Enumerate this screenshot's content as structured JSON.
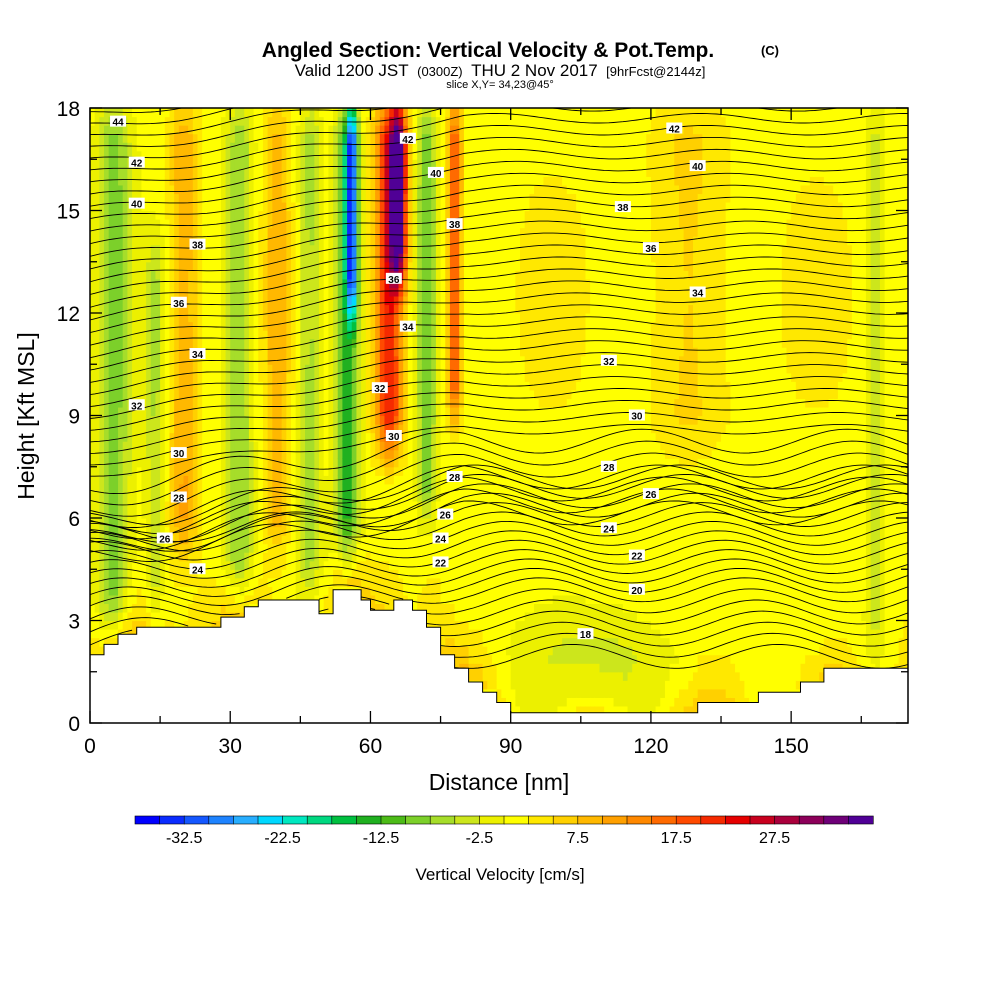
{
  "chart_data": {
    "type": "heatmap",
    "title": "Angled Section: Vertical Velocity & Pot.Temp.",
    "title_suffix": "(C)",
    "subtitle_a": "Valid 1200 JST",
    "subtitle_b": "(0300Z)",
    "subtitle_c": "THU 2 Nov 2017",
    "subtitle_d": "[9hrFcst@2144z]",
    "subtitle_line2": "slice X,Y= 34,23@45°",
    "xlabel": "Distance [nm]",
    "ylabel": "Height [Kft MSL]",
    "xlim": [
      0,
      175
    ],
    "ylim": [
      0,
      18
    ],
    "x_ticks": [
      0,
      30,
      60,
      90,
      120,
      150
    ],
    "y_ticks": [
      0,
      3,
      6,
      9,
      12,
      15,
      18
    ],
    "colorbar": {
      "label": "Vertical Velocity [cm/s]",
      "tick_labels": [
        "-32.5",
        "-22.5",
        "-12.5",
        "-2.5",
        "7.5",
        "17.5",
        "27.5"
      ],
      "tick_values": [
        -32.5,
        -22.5,
        -12.5,
        -2.5,
        7.5,
        17.5,
        27.5
      ],
      "range": [
        -37.5,
        37.5
      ],
      "step": 2.5,
      "colors": [
        "#0000ff",
        "#0a2cff",
        "#1457ff",
        "#1e83ff",
        "#28aeff",
        "#00d8ff",
        "#00e8c0",
        "#00d880",
        "#00c040",
        "#20b020",
        "#4cbb17",
        "#7cd02a",
        "#a6dd2a",
        "#cce61c",
        "#ecf000",
        "#ffff00",
        "#ffe800",
        "#ffd000",
        "#ffb800",
        "#ffa000",
        "#ff8800",
        "#ff6a00",
        "#ff4a00",
        "#f52a00",
        "#e60000",
        "#c8001e",
        "#aa003c",
        "#8c005a",
        "#6e0078",
        "#500096"
      ]
    },
    "theta_contours": [
      {
        "label": "18",
        "label_pos": [
          106,
          2.6
        ]
      },
      {
        "label": "20",
        "label_pos": [
          117,
          3.9
        ]
      },
      {
        "label": "22",
        "label_pos": [
          75,
          4.7
        ],
        "label_pos2": [
          117,
          4.9
        ]
      },
      {
        "label": "24",
        "label_pos": [
          23,
          4.5
        ],
        "label_pos2": [
          75,
          5.4
        ],
        "label_pos3": [
          111,
          5.7
        ]
      },
      {
        "label": "26",
        "label_pos": [
          16,
          5.4
        ],
        "label_pos2": [
          76,
          6.1
        ],
        "label_pos3": [
          120,
          6.7
        ]
      },
      {
        "label": "28",
        "label_pos": [
          19,
          6.6
        ],
        "label_pos2": [
          78,
          7.2
        ],
        "label_pos3": [
          111,
          7.5
        ]
      },
      {
        "label": "30",
        "label_pos": [
          19,
          7.9
        ],
        "label_pos2": [
          65,
          8.4
        ],
        "label_pos3": [
          117,
          9.0
        ]
      },
      {
        "label": "32",
        "label_pos": [
          10,
          9.3
        ],
        "label_pos2": [
          62,
          9.8
        ],
        "label_pos3": [
          111,
          10.6
        ]
      },
      {
        "label": "34",
        "label_pos": [
          23,
          10.8
        ],
        "label_pos2": [
          68,
          11.6
        ],
        "label_pos3": [
          130,
          12.6
        ]
      },
      {
        "label": "36",
        "label_pos": [
          19,
          12.3
        ],
        "label_pos2": [
          65,
          13.0
        ],
        "label_pos3": [
          120,
          13.9
        ]
      },
      {
        "label": "38",
        "label_pos": [
          23,
          14.0
        ],
        "label_pos2": [
          78,
          14.6
        ],
        "label_pos3": [
          114,
          15.1
        ]
      },
      {
        "label": "40",
        "label_pos": [
          10,
          15.2
        ],
        "label_pos2": [
          74,
          16.1
        ],
        "label_pos3": [
          130,
          16.3
        ]
      },
      {
        "label": "42",
        "label_pos": [
          10,
          16.4
        ],
        "label_pos2": [
          68,
          17.1
        ],
        "label_pos3": [
          125,
          17.4
        ]
      },
      {
        "label": "44",
        "label_pos": [
          6,
          17.6
        ]
      }
    ],
    "terrain": [
      [
        0,
        2.0
      ],
      [
        3,
        2.0
      ],
      [
        3,
        2.3
      ],
      [
        6,
        2.3
      ],
      [
        6,
        2.6
      ],
      [
        10,
        2.6
      ],
      [
        10,
        2.8
      ],
      [
        28,
        2.8
      ],
      [
        28,
        3.1
      ],
      [
        33,
        3.1
      ],
      [
        33,
        3.4
      ],
      [
        36,
        3.4
      ],
      [
        36,
        3.6
      ],
      [
        49,
        3.6
      ],
      [
        49,
        3.2
      ],
      [
        52,
        3.2
      ],
      [
        52,
        3.9
      ],
      [
        58,
        3.9
      ],
      [
        58,
        3.6
      ],
      [
        60,
        3.6
      ],
      [
        60,
        3.3
      ],
      [
        65,
        3.3
      ],
      [
        65,
        3.6
      ],
      [
        69,
        3.6
      ],
      [
        69,
        3.3
      ],
      [
        72,
        3.3
      ],
      [
        72,
        2.8
      ],
      [
        75,
        2.8
      ],
      [
        75,
        2.0
      ],
      [
        78,
        2.0
      ],
      [
        78,
        1.6
      ],
      [
        81,
        1.6
      ],
      [
        81,
        1.2
      ],
      [
        84,
        1.2
      ],
      [
        84,
        0.9
      ],
      [
        87,
        0.9
      ],
      [
        87,
        0.6
      ],
      [
        90,
        0.6
      ],
      [
        90,
        0.3
      ],
      [
        130,
        0.3
      ],
      [
        130,
        0.6
      ],
      [
        143,
        0.6
      ],
      [
        143,
        0.9
      ],
      [
        152,
        0.9
      ],
      [
        152,
        1.2
      ],
      [
        157,
        1.2
      ],
      [
        157,
        1.6
      ],
      [
        175,
        1.6
      ]
    ],
    "w_field_features": [
      {
        "x": 5,
        "z0": 2.5,
        "z1": 18,
        "w": -10,
        "width": 3.5
      },
      {
        "x": 14,
        "z0": 3,
        "z1": 14,
        "w": -6,
        "width": 2
      },
      {
        "x": 20,
        "z0": 5,
        "z1": 18,
        "w": 9,
        "width": 3
      },
      {
        "x": 32,
        "z0": 4,
        "z1": 18,
        "w": -9,
        "width": 3
      },
      {
        "x": 40,
        "z0": 5,
        "z1": 18,
        "w": 7,
        "width": 2.5
      },
      {
        "x": 47,
        "z0": 4,
        "z1": 18,
        "w": -8,
        "width": 2.5
      },
      {
        "x": 55,
        "z0": 5,
        "z1": 18,
        "w": -15,
        "width": 2.5
      },
      {
        "x": 56,
        "z0": 12,
        "z1": 18,
        "w": -25,
        "width": 1.2
      },
      {
        "x": 64,
        "z0": 8,
        "z1": 18,
        "w": 22,
        "width": 3
      },
      {
        "x": 66,
        "z0": 13,
        "z1": 18,
        "w": 28,
        "width": 1.8
      },
      {
        "x": 72,
        "z0": 6,
        "z1": 18,
        "w": -10,
        "width": 2
      },
      {
        "x": 78,
        "z0": 9,
        "z1": 18,
        "w": 18,
        "width": 1.5
      },
      {
        "x": 112,
        "z0": 0,
        "z1": 3,
        "w": -5,
        "width": 18
      },
      {
        "x": 128,
        "z0": 8,
        "z1": 18,
        "w": 5,
        "width": 8
      },
      {
        "x": 168,
        "z0": 2,
        "z1": 18,
        "w": -5,
        "width": 2
      }
    ]
  }
}
